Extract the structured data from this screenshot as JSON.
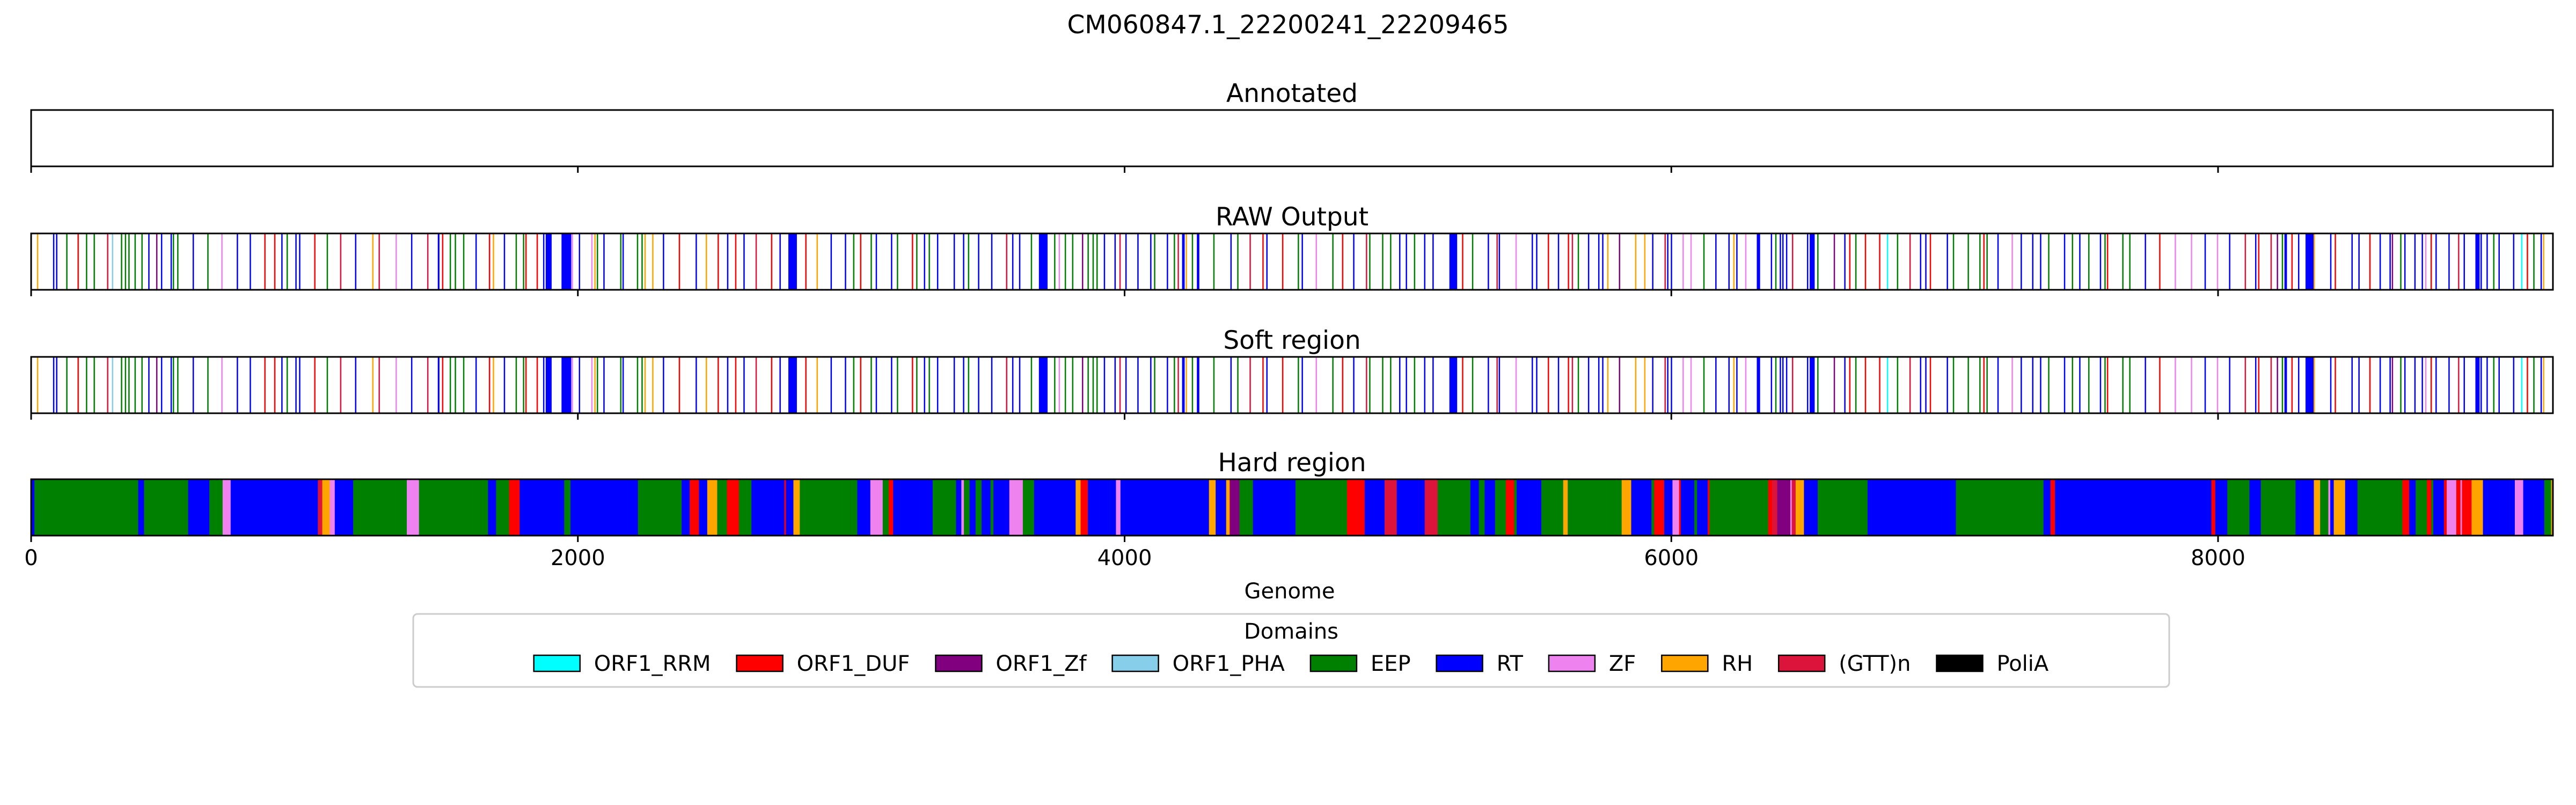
{
  "chart_data": {
    "type": "genome-track",
    "title": "CM060847.1_22200241_22209465",
    "xlabel": "Genome",
    "xlim": [
      0,
      9225
    ],
    "xticks": [
      0,
      2000,
      4000,
      6000,
      8000
    ],
    "grid": false,
    "legend": {
      "title": "Domains",
      "placement": "bottom-center",
      "entries": [
        {
          "name": "ORF1_RRM",
          "color": "#00ffff"
        },
        {
          "name": "ORF1_DUF",
          "color": "#ff0000"
        },
        {
          "name": "ORF1_Zf",
          "color": "#800080"
        },
        {
          "name": "ORF1_PHA",
          "color": "#87ceeb"
        },
        {
          "name": "EEP",
          "color": "#008000"
        },
        {
          "name": "RT",
          "color": "#0000ff"
        },
        {
          "name": "ZF",
          "color": "#ee82ee"
        },
        {
          "name": "RH",
          "color": "#ffa500"
        },
        {
          "name": "(GTT)n",
          "color": "#dc143c"
        },
        {
          "name": "PoliA",
          "color": "#000000"
        }
      ]
    },
    "panels": [
      {
        "title": "Annotated",
        "mode": "none",
        "seed": 0
      },
      {
        "title": "RAW Output",
        "mode": "sparse",
        "seed": 7
      },
      {
        "title": "Soft region",
        "mode": "sparse",
        "seed": 7
      },
      {
        "title": "Hard region",
        "mode": "dense",
        "seed": 19
      }
    ]
  }
}
